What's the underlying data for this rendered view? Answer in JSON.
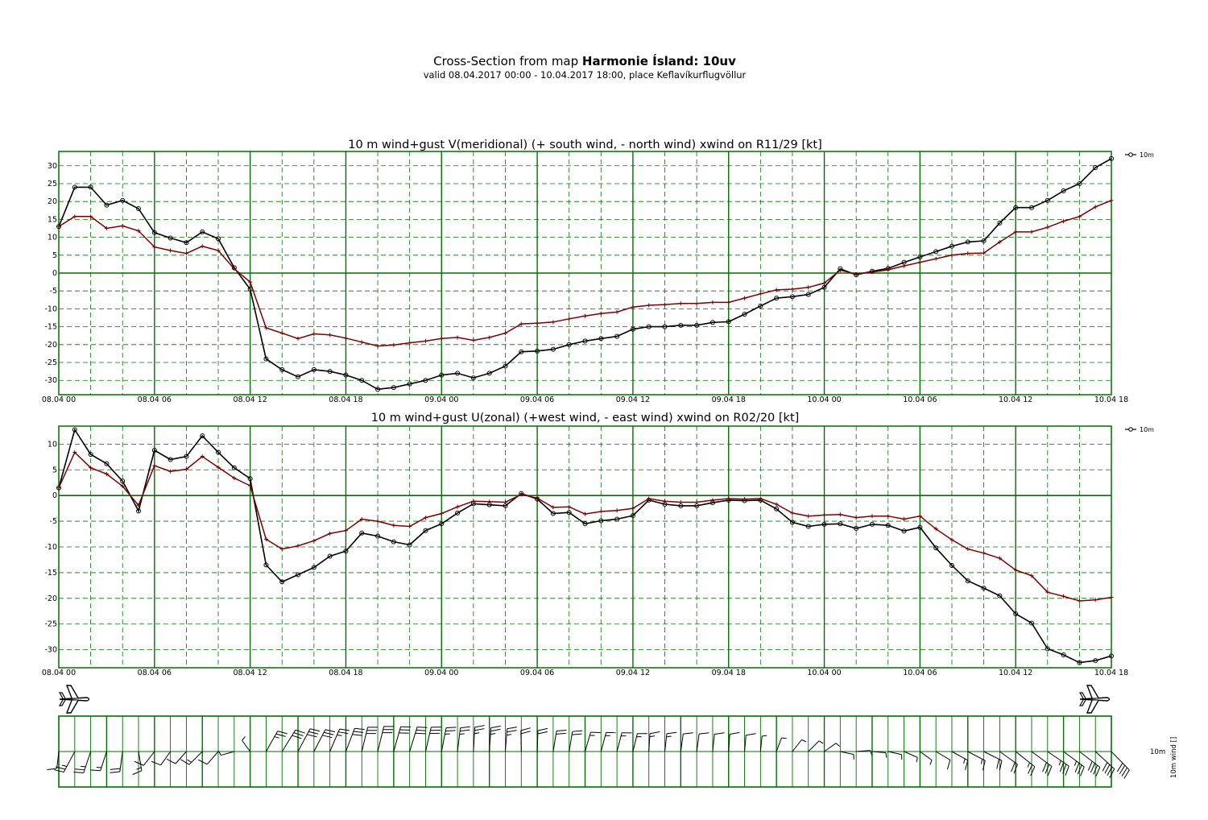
{
  "header": {
    "title_prefix": "Cross-Section from map",
    "title_bold": "Harmonie Ísland: 10uv",
    "subtitle": "valid 08.04.2017 00:00 - 10.04.2017 18:00, place Keflavíkurflugvöllur"
  },
  "colors": {
    "grid": "#007000",
    "wind": "#000000",
    "gust": "#7a0000"
  },
  "icons": [
    "airplane-icon",
    "wind-barb-icon"
  ],
  "chart_data": [
    {
      "type": "line",
      "title": "10 m wind+gust V(meridional) (+ south wind, - north wind) xwind on R11/29 [kt]",
      "x_ticks": [
        "08.04 00",
        "08.04 06",
        "08.04 12",
        "08.04 18",
        "09.04 00",
        "09.04 06",
        "09.04 12",
        "09.04 18",
        "10.04 00",
        "10.04 06",
        "10.04 12",
        "10.04 18"
      ],
      "x_range": [
        "08.04 00",
        "10.04 18"
      ],
      "x_step_hours": 1,
      "ylim": [
        -34,
        34
      ],
      "y_ticks": [
        30,
        25,
        20,
        15,
        10,
        5,
        0,
        -5,
        -10,
        -15,
        -20,
        -25,
        -30
      ],
      "grid": true,
      "legend": {
        "position": "top-right",
        "label": "10m"
      },
      "series": [
        {
          "name": "10m",
          "role": "wind",
          "marker": "circle",
          "values": [
            13,
            24,
            24,
            19,
            20.3,
            18,
            11.3,
            9.8,
            8.5,
            11.5,
            9.6,
            1.5,
            -4.5,
            -24,
            -27,
            -29,
            -27,
            -27.5,
            -28.5,
            -30,
            -32.5,
            -32,
            -31,
            -30,
            -28.5,
            -28,
            -29.3,
            -28,
            -26,
            -22,
            -21.8,
            -21.3,
            -20,
            -19,
            -18.3,
            -17.7,
            -15.7,
            -15,
            -15,
            -14.6,
            -14.6,
            -13.8,
            -13.6,
            -11.5,
            -9.2,
            -7,
            -6.6,
            -6,
            -4,
            1.2,
            -0.5,
            0.5,
            1.3,
            3,
            4.5,
            6,
            7.5,
            8.7,
            9,
            14,
            18.3,
            18.3,
            20.3,
            23,
            25,
            29.5,
            32
          ]
        },
        {
          "role": "gust",
          "marker": "plus",
          "values": [
            13,
            15.8,
            15.8,
            12.5,
            13.2,
            11.8,
            7.3,
            6.3,
            5.5,
            7.5,
            6.3,
            1.2,
            -2.5,
            -15.3,
            -16.8,
            -18.3,
            -17,
            -17.3,
            -18.2,
            -19.3,
            -20.4,
            -20.1,
            -19.5,
            -19,
            -18.3,
            -18,
            -18.8,
            -18,
            -16.8,
            -14.2,
            -14,
            -13.7,
            -12.8,
            -12,
            -11.3,
            -10.9,
            -9.5,
            -9,
            -8.8,
            -8.5,
            -8.5,
            -8.2,
            -8.2,
            -7,
            -5.8,
            -4.7,
            -4.5,
            -4,
            -2.8,
            0.8,
            -0.3,
            0.3,
            0.9,
            2,
            3,
            4,
            5,
            5.5,
            5.6,
            8.7,
            11.5,
            11.5,
            12.8,
            14.5,
            15.8,
            18.5,
            20.3
          ]
        }
      ]
    },
    {
      "type": "line",
      "title": "10 m wind+gust U(zonal) (+west wind, - east wind) xwind on R02/20 [kt]",
      "x_ticks": [
        "08.04 00",
        "08.04 06",
        "08.04 12",
        "08.04 18",
        "09.04 00",
        "09.04 06",
        "09.04 12",
        "09.04 18",
        "10.04 00",
        "10.04 06",
        "10.04 12",
        "10.04 18"
      ],
      "x_range": [
        "08.04 00",
        "10.04 18"
      ],
      "x_step_hours": 1,
      "ylim": [
        -33.5,
        13.5
      ],
      "y_ticks": [
        10,
        5,
        0,
        -5,
        -10,
        -15,
        -20,
        -25,
        -30
      ],
      "grid": true,
      "legend": {
        "position": "top-right",
        "label": "10m"
      },
      "series": [
        {
          "name": "10m",
          "role": "wind",
          "marker": "circle",
          "values": [
            1.5,
            12.8,
            8,
            6.2,
            2.8,
            -3,
            8.8,
            7,
            7.6,
            11.6,
            8.4,
            5.4,
            3.3,
            -13.5,
            -16.8,
            -15.4,
            -14,
            -11.8,
            -10.8,
            -7.3,
            -7.9,
            -9,
            -9.6,
            -6.8,
            -5.5,
            -3.4,
            -1.6,
            -1.8,
            -2,
            0.4,
            -0.7,
            -3.5,
            -3.3,
            -5.5,
            -4.9,
            -4.6,
            -3.9,
            -0.9,
            -1.7,
            -2,
            -2,
            -1.4,
            -0.9,
            -1,
            -0.9,
            -2.6,
            -5.2,
            -6,
            -5.6,
            -5.5,
            -6.4,
            -5.6,
            -5.8,
            -6.9,
            -6.2,
            -10.2,
            -13.6,
            -16.6,
            -18,
            -19.5,
            -23,
            -24.8,
            -29.8,
            -31,
            -32.5,
            -32.1,
            -31.2
          ]
        },
        {
          "role": "gust",
          "marker": "plus",
          "values": [
            1.5,
            8.4,
            5.4,
            4.2,
            1.8,
            -1.9,
            5.8,
            4.7,
            5.1,
            7.6,
            5.5,
            3.4,
            1.9,
            -8.5,
            -10.4,
            -9.8,
            -8.8,
            -7.4,
            -6.8,
            -4.6,
            -5,
            -5.8,
            -6,
            -4.3,
            -3.5,
            -2.2,
            -1.1,
            -1.2,
            -1.3,
            0.2,
            -0.5,
            -2.3,
            -2.2,
            -3.6,
            -3.1,
            -2.9,
            -2.5,
            -0.6,
            -1.1,
            -1.3,
            -1.3,
            -0.9,
            -0.6,
            -0.7,
            -0.6,
            -1.7,
            -3.4,
            -4,
            -3.8,
            -3.7,
            -4.3,
            -4,
            -4,
            -4.6,
            -4,
            -6.5,
            -8.6,
            -10.4,
            -11.2,
            -12.2,
            -14.5,
            -15.6,
            -18.8,
            -19.6,
            -20.5,
            -20.3,
            -19.8
          ]
        }
      ]
    }
  ],
  "wind_panel": {
    "label": "10m",
    "axis_label": "10m wind []"
  }
}
